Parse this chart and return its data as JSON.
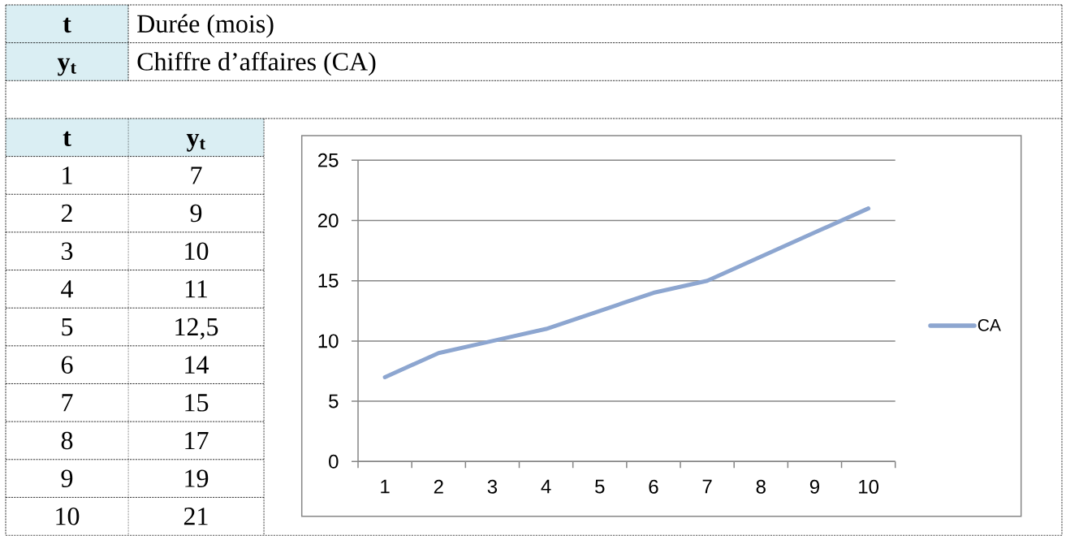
{
  "chart_data": {
    "type": "line",
    "annotations": [
      "t",
      "Durée (mois)",
      "y$_{t}$",
      "Chiffre d’affaires (CA)",
      "t",
      "y$_{t}$",
      "7",
      "9",
      "10",
      "11",
      "12,5",
      "14",
      "15",
      "17",
      "19",
      "21"
    ],
    "categories": [
      "1",
      "2",
      "3",
      "4",
      "5",
      "6",
      "7",
      "8",
      "9",
      "10"
    ],
    "series": [
      {
        "name": "CA",
        "color": "#8da6d0",
        "values": [
          7,
          9,
          10,
          11,
          12.5,
          14,
          15,
          17,
          19,
          21
        ]
      }
    ],
    "ylim": [
      0,
      25
    ],
    "yticks": [
      0,
      5,
      10,
      15,
      20,
      25
    ],
    "grid": "y",
    "legend": "right",
    "marker": "none",
    "line_style": "solid"
  }
}
